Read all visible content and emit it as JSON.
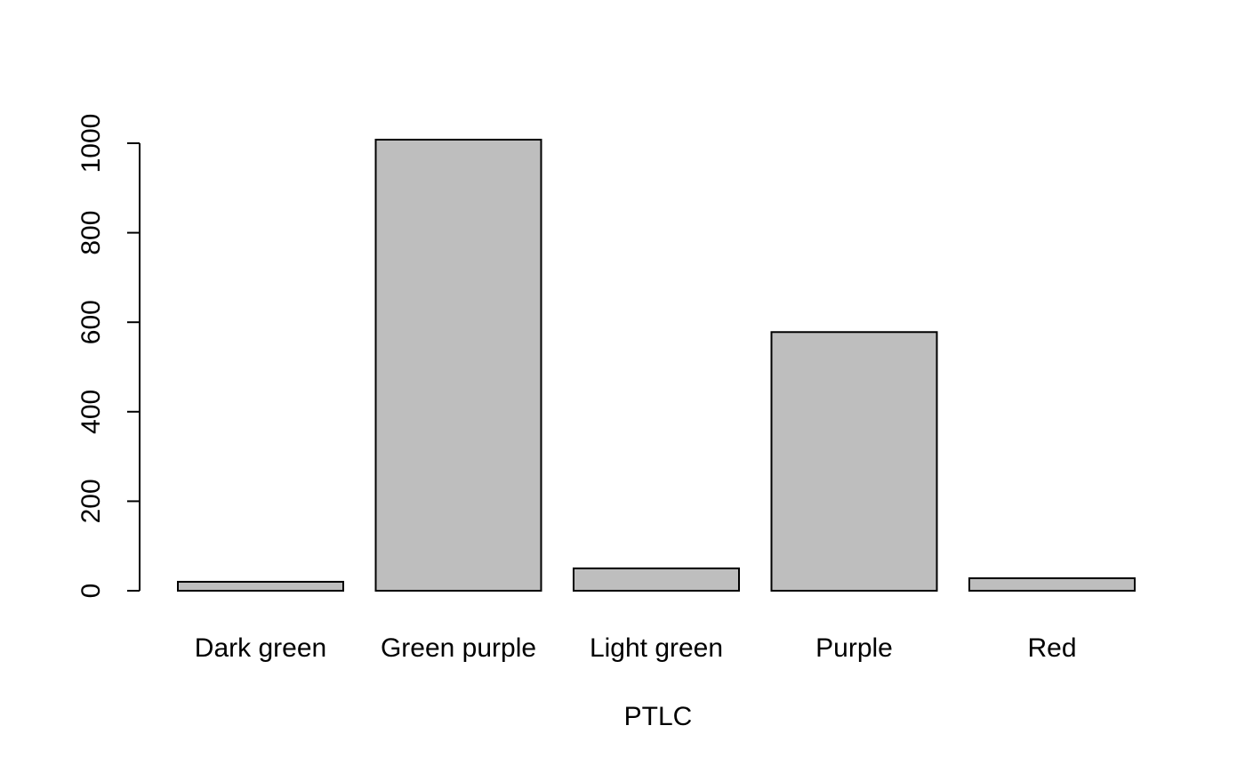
{
  "chart_data": {
    "type": "bar",
    "categories": [
      "Dark green",
      "Green purple",
      "Light green",
      "Purple",
      "Red"
    ],
    "values": [
      20,
      1008,
      50,
      578,
      28
    ],
    "title": "",
    "xlabel": "PTLC",
    "ylabel": "",
    "ylim": [
      0,
      1000
    ],
    "yticks": [
      0,
      200,
      400,
      600,
      800,
      1000
    ],
    "grid": false,
    "legend": "none",
    "colors": {
      "bar_fill": "#bebebe",
      "bar_stroke": "#000000",
      "axis": "#000000",
      "background": "#ffffff"
    }
  }
}
